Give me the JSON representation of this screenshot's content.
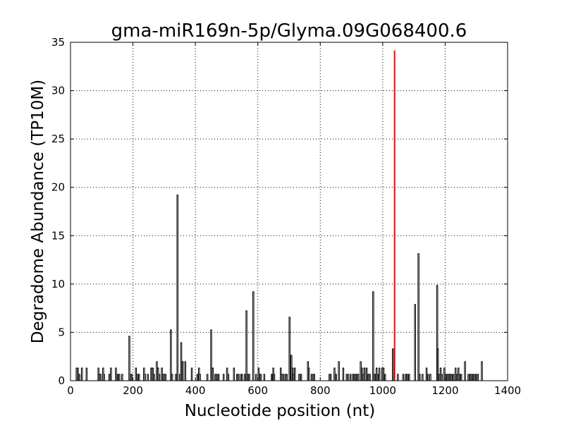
{
  "chart_data": {
    "type": "bar",
    "title": "gma-miR169n-5p/Glyma.09G068400.6",
    "xlabel": "Nucleotide position (nt)",
    "ylabel": "Degradome Abundance (TP10M)",
    "xlim": [
      0,
      1400
    ],
    "ylim": [
      0,
      35
    ],
    "xticks": [
      "0",
      "200",
      "400",
      "600",
      "800",
      "1000",
      "1200",
      "1400"
    ],
    "yticks": [
      "0",
      "5",
      "10",
      "15",
      "20",
      "25",
      "30",
      "35"
    ],
    "grid": true,
    "colors": {
      "bars": "#000000",
      "highlight": "#ff0000"
    },
    "series": [
      {
        "x": [
          19,
          23,
          28,
          36,
          51,
          89,
          92,
          96,
          104,
          107,
          124,
          129,
          145,
          151,
          156,
          165,
          188,
          192,
          196,
          209,
          213,
          219,
          235,
          238,
          247,
          258,
          263,
          267,
          276,
          280,
          284,
          292,
          296,
          300,
          304,
          321,
          325,
          337,
          342,
          350,
          354,
          359,
          367,
          388,
          406,
          411,
          414,
          438,
          450,
          455,
          463,
          468,
          474,
          490,
          501,
          505,
          523,
          533,
          538,
          546,
          549,
          558,
          563,
          568,
          572,
          585,
          594,
          602,
          606,
          609,
          620,
          644,
          647,
          649,
          652,
          673,
          677,
          681,
          688,
          692,
          701,
          707,
          711,
          714,
          718,
          732,
          738,
          760,
          763,
          772,
          776,
          780,
          829,
          833,
          845,
          850,
          859,
          873,
          884,
          888,
          896,
          904,
          909,
          913,
          917,
          921,
          929,
          933,
          937,
          941,
          948,
          953,
          958,
          969,
          974,
          980,
          984,
          989,
          998,
          1002,
          1007,
          1032
        ],
        "y": [
          1.31,
          1.31,
          0.66,
          1.31,
          1.31,
          1.31,
          0.66,
          0.66,
          1.31,
          0.66,
          0.66,
          1.31,
          1.31,
          0.66,
          0.66,
          0.66,
          4.6,
          0.66,
          0.66,
          1.31,
          0.66,
          0.66,
          1.31,
          0.66,
          0.66,
          1.31,
          1.31,
          0.66,
          1.97,
          1.31,
          0.66,
          1.31,
          0.66,
          0.66,
          0.66,
          5.26,
          0.66,
          0.66,
          19.2,
          0.66,
          3.94,
          1.97,
          1.97,
          1.31,
          0.66,
          1.31,
          0.66,
          0.66,
          5.26,
          1.31,
          0.66,
          0.66,
          0.66,
          0.66,
          1.31,
          0.66,
          1.31,
          0.66,
          0.66,
          0.66,
          0.66,
          0.66,
          7.23,
          0.66,
          0.66,
          9.2,
          0.66,
          1.31,
          0.66,
          0.66,
          0.66,
          0.66,
          0.66,
          1.31,
          0.66,
          1.31,
          0.66,
          0.66,
          0.66,
          0.66,
          6.57,
          2.63,
          1.31,
          0.66,
          1.31,
          0.66,
          0.66,
          1.97,
          1.31,
          0.66,
          0.66,
          0.66,
          0.66,
          0.66,
          1.31,
          0.66,
          1.97,
          1.31,
          0.66,
          0.66,
          0.66,
          0.66,
          0.66,
          0.66,
          0.66,
          0.66,
          1.97,
          1.31,
          0.66,
          1.31,
          1.31,
          0.66,
          0.66,
          9.2,
          0.66,
          1.31,
          0.66,
          1.31,
          1.31,
          1.31,
          0.66,
          3.29
        ]
      },
      {
        "x": [
          1048,
          1065,
          1073,
          1078,
          1084,
          1103,
          1114,
          1118,
          1127,
          1140,
          1145,
          1152,
          1174,
          1176,
          1181,
          1185,
          1189,
          1197,
          1201,
          1206,
          1211,
          1216,
          1220,
          1226,
          1233,
          1238,
          1242,
          1246,
          1251,
          1263,
          1274,
          1280,
          1286,
          1292,
          1298,
          1304,
          1317
        ],
        "y": [
          0.66,
          0.66,
          0.66,
          0.66,
          0.66,
          7.88,
          13.14,
          0.66,
          0.66,
          1.31,
          0.66,
          0.66,
          9.86,
          3.29,
          0.66,
          1.31,
          0.66,
          1.31,
          0.66,
          0.66,
          0.66,
          0.66,
          0.66,
          0.66,
          1.31,
          0.66,
          1.31,
          0.66,
          0.66,
          1.97,
          0.66,
          0.66,
          0.66,
          0.66,
          0.66,
          0.66,
          1.97
        ]
      }
    ],
    "highlight": {
      "x": 1038,
      "y": 34.16
    }
  }
}
